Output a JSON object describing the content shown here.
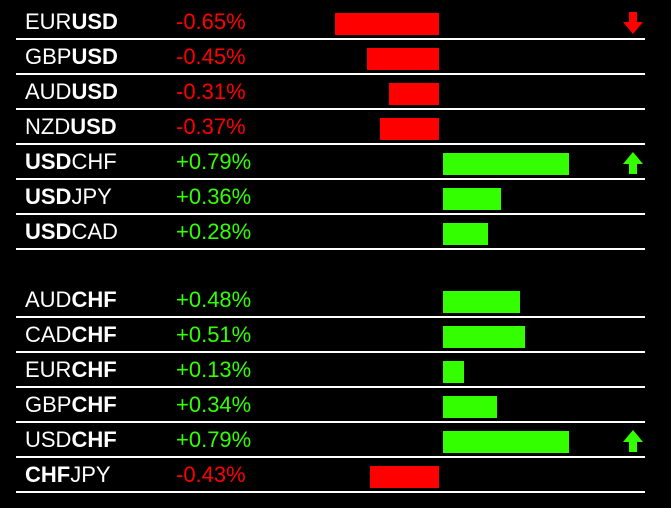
{
  "colors": {
    "background": "#000000",
    "negative": "#ff0000",
    "positive": "#33ff00",
    "text": "#ffffff",
    "divider": "#ffffff"
  },
  "groups": [
    {
      "rows": [
        {
          "plain_left": "EUR",
          "bold": "USD",
          "plain_right": "",
          "change": "-0.65%",
          "value": -0.65,
          "arrow": "down-arrow-icon"
        },
        {
          "plain_left": "GBP",
          "bold": "USD",
          "plain_right": "",
          "change": "-0.45%",
          "value": -0.45,
          "arrow": ""
        },
        {
          "plain_left": "AUD",
          "bold": "USD",
          "plain_right": "",
          "change": "-0.31%",
          "value": -0.31,
          "arrow": ""
        },
        {
          "plain_left": "NZD",
          "bold": "USD",
          "plain_right": "",
          "change": "-0.37%",
          "value": -0.37,
          "arrow": ""
        },
        {
          "plain_left": "",
          "bold": "USD",
          "plain_right": "CHF",
          "change": "+0.79%",
          "value": 0.79,
          "arrow": "up-arrow-icon"
        },
        {
          "plain_left": "",
          "bold": "USD",
          "plain_right": "JPY",
          "change": "+0.36%",
          "value": 0.36,
          "arrow": ""
        },
        {
          "plain_left": "",
          "bold": "USD",
          "plain_right": "CAD",
          "change": "+0.28%",
          "value": 0.28,
          "arrow": ""
        }
      ]
    },
    {
      "rows": [
        {
          "plain_left": "AUD",
          "bold": "CHF",
          "plain_right": "",
          "change": "+0.48%",
          "value": 0.48,
          "arrow": ""
        },
        {
          "plain_left": "CAD",
          "bold": "CHF",
          "plain_right": "",
          "change": "+0.51%",
          "value": 0.51,
          "arrow": ""
        },
        {
          "plain_left": "EUR",
          "bold": "CHF",
          "plain_right": "",
          "change": "+0.13%",
          "value": 0.13,
          "arrow": ""
        },
        {
          "plain_left": "GBP",
          "bold": "CHF",
          "plain_right": "",
          "change": "+0.34%",
          "value": 0.34,
          "arrow": ""
        },
        {
          "plain_left": "USD",
          "bold": "CHF",
          "plain_right": "",
          "change": "+0.79%",
          "value": 0.79,
          "arrow": "up-arrow-icon"
        },
        {
          "plain_left": "",
          "bold": "CHF",
          "plain_right": "JPY",
          "change": "-0.43%",
          "value": -0.43,
          "arrow": ""
        }
      ]
    }
  ]
}
